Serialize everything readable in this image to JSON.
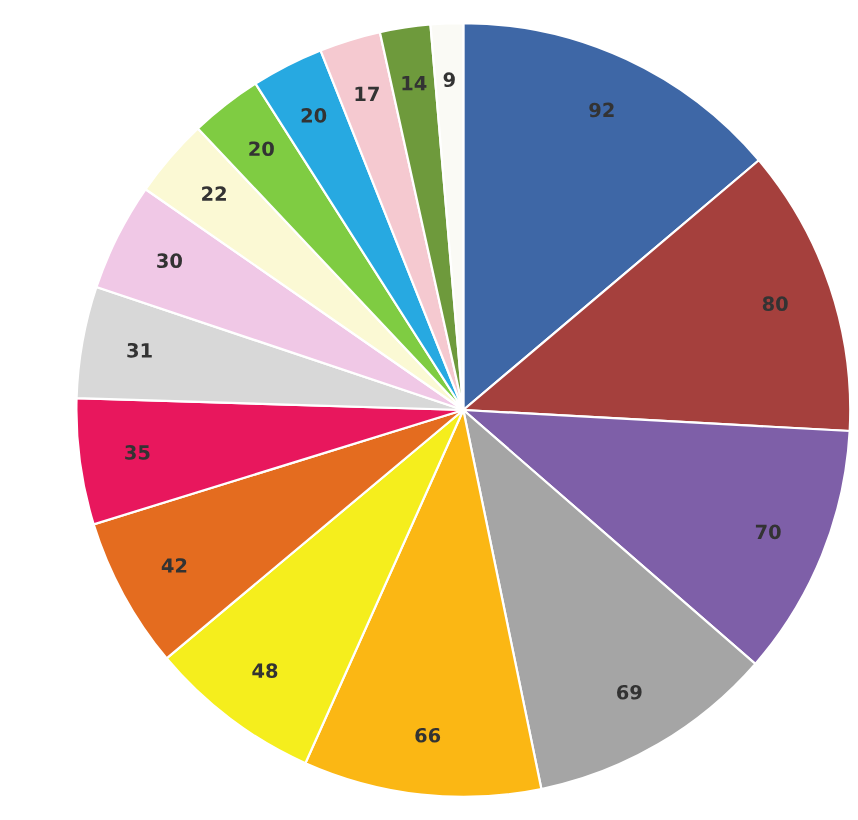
{
  "chart_data": {
    "type": "pie",
    "categories": [
      null,
      null,
      null,
      null,
      null,
      null,
      null,
      null,
      null,
      null,
      null,
      null,
      null,
      null,
      null,
      null
    ],
    "values": [
      92,
      80,
      70,
      69,
      66,
      48,
      42,
      35,
      31,
      30,
      22,
      20,
      20,
      17,
      14,
      9
    ],
    "colors": [
      "#3e67a6",
      "#a5403d",
      "#7e5fa8",
      "#a5a5a5",
      "#fbb714",
      "#f5ee1d",
      "#e46c1f",
      "#e8175d",
      "#d8d8d8",
      "#f0c8e6",
      "#fbf9d4",
      "#7fcc42",
      "#27a9e1",
      "#f5c9d0",
      "#6e9a3c",
      "#fafaf5"
    ],
    "data_labels": true
  }
}
